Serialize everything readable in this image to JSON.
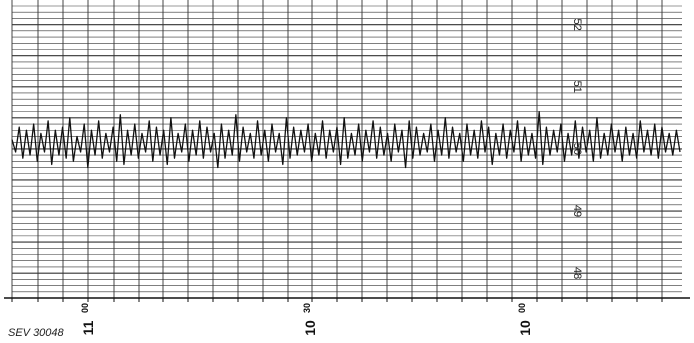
{
  "reference": "SEV 30048",
  "chart_data": {
    "type": "line",
    "title": "",
    "xlabel": "",
    "ylabel": "",
    "x_ticks": [
      {
        "label": "11",
        "sup": "00"
      },
      {
        "label": "10",
        "sup": "30"
      },
      {
        "label": "10",
        "sup": "00"
      }
    ],
    "y_ticks": [
      "52",
      "51",
      "50",
      "49",
      "48"
    ],
    "ylim": [
      47.6,
      52.3
    ],
    "grid": true,
    "trace_center": 50.1,
    "trace_amplitude": 0.25,
    "series": [
      {
        "values": [
          50.15,
          49.95,
          50.35,
          49.85,
          50.3,
          49.9,
          50.4,
          49.8,
          50.25,
          49.95,
          50.45,
          49.75,
          50.3,
          49.9,
          50.35,
          49.85,
          50.5,
          49.8,
          50.2,
          49.95,
          50.4,
          49.7,
          50.3,
          49.9,
          50.45,
          49.85,
          50.25,
          49.95,
          50.35,
          49.8,
          50.55,
          49.75,
          50.3,
          49.9,
          50.4,
          49.85,
          50.25,
          49.95,
          50.45,
          49.8,
          50.35,
          49.9,
          50.3,
          49.75,
          50.5,
          49.85,
          50.25,
          49.95,
          50.4,
          49.8,
          50.3,
          49.9,
          50.45,
          49.85,
          50.35,
          49.95,
          50.25,
          49.7,
          50.4,
          49.85,
          50.3,
          49.9,
          50.55,
          49.8,
          50.35,
          49.95,
          50.25,
          49.85,
          50.45,
          49.9,
          50.3,
          49.8,
          50.4,
          49.95,
          50.25,
          49.75,
          50.5,
          49.85,
          50.35,
          49.9,
          50.3,
          49.95,
          50.4,
          49.8,
          50.25,
          49.9,
          50.45,
          49.85,
          50.3,
          49.95,
          50.35,
          49.75,
          50.5,
          49.85,
          50.25,
          49.9,
          50.4,
          49.8,
          50.3,
          49.95,
          50.45,
          49.85,
          50.35,
          49.9,
          50.25,
          49.8,
          50.4,
          49.95,
          50.3,
          49.7,
          50.45,
          49.85,
          50.35,
          49.9,
          50.25,
          49.95,
          50.4,
          49.8,
          50.3,
          49.9,
          50.5,
          49.85,
          50.35,
          49.95,
          50.25,
          49.8,
          50.4,
          49.9,
          50.3,
          49.85,
          50.45,
          49.95,
          50.35,
          49.75,
          50.25,
          49.9,
          50.4,
          49.85,
          50.3,
          49.95,
          50.45,
          49.8,
          50.35,
          49.9,
          50.25,
          49.85,
          50.6,
          49.75,
          50.35,
          49.9,
          50.3,
          49.95,
          50.4,
          49.8,
          50.25,
          49.9,
          50.45,
          49.85,
          50.35,
          49.95,
          50.3,
          49.8,
          50.5,
          49.85,
          50.25,
          49.9,
          50.4,
          49.95,
          50.3,
          49.8,
          50.35,
          49.9,
          50.25,
          49.85,
          50.45,
          49.95,
          50.3,
          49.9,
          50.4,
          49.85,
          50.35,
          49.95,
          50.25,
          49.9,
          50.3,
          49.95
        ]
      }
    ]
  }
}
